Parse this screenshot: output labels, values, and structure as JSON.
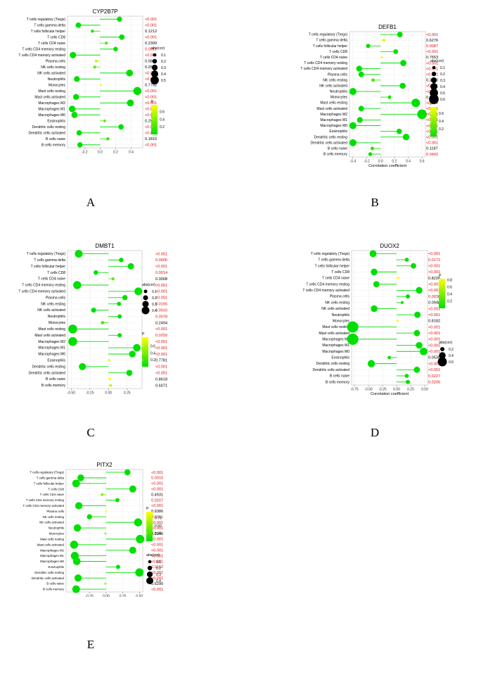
{
  "figure": {
    "letters": [
      "A",
      "B",
      "C",
      "D",
      "E"
    ]
  },
  "colors": {
    "high_p": "#ffff00",
    "low_p": "#00e000",
    "sig": "#e01010",
    "nonsig": "#000000"
  },
  "chart_data": [
    {
      "type": "scatter",
      "title": "CYP2B7P",
      "xlabel": "Correlation coefficient",
      "xticks": [
        -0.2,
        0.0,
        0.2,
        0.4
      ],
      "xlim": [
        -0.42,
        0.55
      ],
      "cells": [
        "T cells regulatory (Tregs)",
        "T cells gamma delta",
        "T cells follicular helper",
        "T cells CD8",
        "T cells CD4 naive",
        "T cells CD4 memory resting",
        "T cells CD4 memory activated",
        "Plasma cells",
        "NK cells resting",
        "NK cells activated",
        "Neutrophils",
        "Monocytes",
        "Mast cells resting",
        "Mast cells activated",
        "Macrophages M2",
        "Macrophages M1",
        "Macrophages M0",
        "Eosinophils",
        "Dendritic cells resting",
        "Dendritic cells activated",
        "B cells naive",
        "B cells memory"
      ],
      "cor": [
        0.25,
        -0.28,
        -0.1,
        0.28,
        0.08,
        0.2,
        -0.35,
        -0.05,
        -0.07,
        0.38,
        -0.3,
        0.01,
        0.48,
        -0.31,
        0.39,
        -0.36,
        -0.33,
        0.06,
        0.27,
        -0.27,
        0.1,
        -0.26
      ],
      "p_values": [
        "<0.001",
        "<0.001",
        "0.1212",
        "<0.001",
        "0.2399",
        "0.0011",
        "<0.001",
        "0.5811",
        "0.2572",
        "<0.001",
        "<0.001",
        "0.7792",
        "<0.001",
        "<0.001",
        "<0.001",
        "<0.001",
        "<0.001",
        "0.2977",
        "<0.001",
        "<0.001",
        "0.1810",
        "<0.001"
      ],
      "p": [
        0.0,
        0.0,
        0.1212,
        0.0,
        0.2399,
        0.0011,
        0.0,
        0.5811,
        0.2572,
        0.0,
        0.0,
        0.7792,
        0.0,
        0.0,
        0.0,
        0.0,
        0.0,
        0.2977,
        0.0,
        0.0,
        0.181,
        0.0
      ],
      "size_legend": {
        "title": "abs(cor)",
        "labels": [
          "0.1",
          "0.2",
          "0.3",
          "0.4",
          "0.5"
        ],
        "values": [
          0.1,
          0.2,
          0.3,
          0.4,
          0.5
        ]
      },
      "color_legend": {
        "title": "p",
        "labels": [
          "0.6",
          "0.4",
          "0.2"
        ],
        "values": [
          0.6,
          0.4,
          0.2
        ],
        "range": [
          0,
          0.78
        ]
      },
      "legend_order": "size-first"
    },
    {
      "type": "scatter",
      "title": "DEFB1",
      "xlabel": "Correlation coefficient",
      "xticks": [
        -0.4,
        -0.2,
        0.0,
        0.2,
        0.4,
        0.6
      ],
      "xlim": [
        -0.45,
        0.65
      ],
      "cells": [
        "T cells regulatory (Tregs)",
        "T cells gamma delta",
        "T cells follicular helper",
        "T cells CD8",
        "T cells CD4 naive",
        "T cells CD4 memory resting",
        "T cells CD4 memory activated",
        "Plasma cells",
        "NK cells resting",
        "NK cells activated",
        "Neutrophils",
        "Monocytes",
        "Mast cells resting",
        "Mast cells activated",
        "Macrophages M2",
        "Macrophages M1",
        "Macrophages M0",
        "Eosinophils",
        "Dendritic cells resting",
        "Dendritic cells activated",
        "B cells naive",
        "B cells memory"
      ],
      "cor": [
        0.28,
        0.05,
        -0.18,
        0.22,
        0.02,
        0.33,
        -0.31,
        -0.28,
        -0.11,
        0.32,
        -0.4,
        0.13,
        0.51,
        -0.28,
        0.6,
        -0.3,
        -0.4,
        0.27,
        0.37,
        -0.4,
        -0.12,
        -0.15
      ],
      "p_values": [
        "<0.001",
        "0.6276",
        "0.0087",
        "<0.001",
        "0.7653",
        "<0.001",
        "<0.001",
        "<0.001",
        "0.2090",
        "<0.001",
        "<0.001",
        "0.0870",
        "<0.001",
        "<0.001",
        "<0.001",
        "<0.001",
        "<0.001",
        "<0.001",
        "<0.001",
        "<0.001",
        "0.1187",
        "0.0492"
      ],
      "p": [
        0.0,
        0.6276,
        0.0087,
        0.0,
        0.7653,
        0.0,
        0.0,
        0.0,
        0.209,
        0.0,
        0.0,
        0.087,
        0.0,
        0.0,
        0.0,
        0.0,
        0.0,
        0.0,
        0.0,
        0.0,
        0.1187,
        0.0492
      ],
      "size_legend": {
        "title": "abs(cor)",
        "labels": [
          "0.1",
          "0.2",
          "0.3",
          "0.4",
          "0.5",
          "0.6"
        ],
        "values": [
          0.1,
          0.2,
          0.3,
          0.4,
          0.5,
          0.6
        ]
      },
      "color_legend": {
        "title": "p",
        "labels": [
          "0.6",
          "0.4",
          "0.2"
        ],
        "values": [
          0.6,
          0.4,
          0.2
        ],
        "range": [
          0,
          0.77
        ]
      },
      "legend_order": "size-first"
    },
    {
      "type": "scatter",
      "title": "DMBT1",
      "xlabel": "Correlation coefficient",
      "xticks": [
        -0.5,
        -0.25,
        0.0,
        0.25
      ],
      "xlim": [
        -0.55,
        0.45
      ],
      "cells": [
        "T cells regulatory (Tregs)",
        "T cells gamma delta",
        "T cells follicular helper",
        "T cells CD8",
        "T cells CD4 naive",
        "T cells CD4 memory resting",
        "T cells CD4 memory activated",
        "Plasma cells",
        "NK cells resting",
        "NK cells activated",
        "Neutrophils",
        "Monocytes",
        "Mast cells resting",
        "Mast cells activated",
        "Macrophages M2",
        "Macrophages M1",
        "Macrophages M0",
        "Eosinophils",
        "Dendritic cells resting",
        "Dendritic cells activated",
        "B cells naive",
        "B cells memory"
      ],
      "cor": [
        -0.4,
        0.17,
        0.3,
        -0.17,
        0.06,
        -0.42,
        0.4,
        0.22,
        0.14,
        -0.2,
        0.15,
        -0.08,
        -0.48,
        0.15,
        -0.48,
        0.38,
        0.32,
        0.01,
        -0.35,
        0.28,
        0.02,
        0.03
      ],
      "p_values": [
        "<0.001",
        "0.0006",
        "<0.001",
        "0.0014",
        "0.3008",
        "<0.001",
        "<0.001",
        "<0.001",
        "0.0165",
        "0.0016",
        "0.0078",
        "0.2494",
        "<0.001",
        "0.0250",
        "<0.001",
        "<0.001",
        "<0.001",
        "0.7781",
        "<0.001",
        "<0.001",
        "0.8618",
        "0.6071"
      ],
      "p": [
        0.0,
        0.0006,
        0.0,
        0.0014,
        0.3008,
        0.0,
        0.0,
        0.0,
        0.0165,
        0.0016,
        0.0078,
        0.2494,
        0.0,
        0.025,
        0.0,
        0.0,
        0.0,
        0.7781,
        0.0,
        0.0,
        0.8618,
        0.6071
      ],
      "size_legend": {
        "title": "abs(cor)",
        "labels": [
          "0.1",
          "0.2",
          "0.3",
          "0.4"
        ],
        "values": [
          0.1,
          0.2,
          0.3,
          0.4
        ]
      },
      "color_legend": {
        "title": "p",
        "labels": [
          "0.6",
          "0.4",
          "0.2"
        ],
        "values": [
          0.6,
          0.4,
          0.2
        ],
        "range": [
          0,
          0.86
        ]
      },
      "legend_order": "size-first"
    },
    {
      "type": "scatter",
      "title": "DUOX2",
      "xlabel": "Correlation coefficient",
      "xticks": [
        -0.75,
        -0.5,
        -0.25,
        0.0,
        0.25,
        0.5
      ],
      "xlim": [
        -0.8,
        0.55
      ],
      "cells": [
        "T cells regulatory (Tregs)",
        "T cells gamma delta",
        "T cells follicular helper",
        "T cells CD8",
        "T cells CD4 naive",
        "T cells CD4 memory resting",
        "T cells CD4 memory activated",
        "Plasma cells",
        "NK cells resting",
        "NK cells activated",
        "Neutrophils",
        "Monocytes",
        "Mast cells resting",
        "Mast cells activated",
        "Macrophages M2",
        "Macrophages M1",
        "Macrophages M0",
        "Eosinophils",
        "Dendritic cells resting",
        "Dendritic cells activated",
        "B cells naive",
        "B cells memory"
      ],
      "cor": [
        -0.42,
        0.18,
        0.3,
        -0.4,
        0.03,
        -0.36,
        0.4,
        0.2,
        0.1,
        -0.4,
        0.37,
        0.02,
        -0.78,
        0.36,
        -0.78,
        0.4,
        0.48,
        -0.13,
        -0.45,
        0.36,
        0.18,
        0.2
      ],
      "p_values": [
        "<0.001",
        "0.0172",
        "<0.001",
        "<0.001",
        "0.8226",
        "<0.001",
        "<0.001",
        "0.0036",
        "0.0948",
        "<0.001",
        "<0.001",
        "0.8182",
        "<0.001",
        "<0.001",
        "<0.001",
        "<0.001",
        "<0.001",
        "0.0538",
        "<0.001",
        "<0.001",
        "0.0227",
        "0.0206"
      ],
      "p": [
        0.0,
        0.0172,
        0.0,
        0.0,
        0.8226,
        0.0,
        0.0,
        0.0036,
        0.0948,
        0.0,
        0.0,
        0.8182,
        0.0,
        0.0,
        0.0,
        0.0,
        0.0,
        0.0538,
        0.0,
        0.0,
        0.0227,
        0.0206
      ],
      "size_legend": {
        "title": "abs(cor)",
        "labels": [
          "0.2",
          "0.4",
          "0.6"
        ],
        "values": [
          0.2,
          0.4,
          0.6
        ]
      },
      "color_legend": {
        "title": "p",
        "labels": [
          "0.8",
          "0.6",
          "0.4",
          "0.2"
        ],
        "values": [
          0.8,
          0.6,
          0.4,
          0.2
        ],
        "range": [
          0,
          0.83
        ]
      },
      "legend_order": "color-first"
    },
    {
      "type": "scatter",
      "title": "PITX2",
      "xlabel": "Correlation coefficient",
      "xticks": [
        -0.25,
        0.0,
        0.25,
        0.5
      ],
      "xlim": [
        -0.6,
        0.55
      ],
      "cells": [
        "T cells regulatory (Tregs)",
        "T cells gamma delta",
        "T cells follicular helper",
        "T cells CD8",
        "T cells CD4 naive",
        "T cells CD4 memory resting",
        "T cells CD4 memory activated",
        "Plasma cells",
        "NK cells resting",
        "NK cells activated",
        "Neutrophils",
        "Monocytes",
        "Mast cells resting",
        "Mast cells activated",
        "Macrophages M2",
        "Macrophages M1",
        "Macrophages M0",
        "Eosinophils",
        "Dendritic cells resting",
        "Dendritic cells activated",
        "B cells naive",
        "B cells memory"
      ],
      "cor": [
        0.32,
        -0.38,
        -0.45,
        0.4,
        -0.06,
        0.17,
        -0.41,
        0.0,
        -0.25,
        0.48,
        -0.43,
        -0.01,
        0.51,
        -0.48,
        0.4,
        -0.47,
        -0.44,
        0.18,
        0.5,
        -0.42,
        -0.01,
        -0.45
      ],
      "p_values": [
        "<0.001",
        "0.0010",
        "<0.001",
        "<0.001",
        "0.4931",
        "0.0207",
        "<0.001",
        "0.9386",
        "0.0211",
        "<0.001",
        "<0.001",
        "0.5940",
        "<0.001",
        "<0.001",
        "<0.001",
        "<0.001",
        "<0.001",
        "0.0162",
        "<0.001",
        "<0.001",
        "0.6290",
        "<0.001"
      ],
      "p": [
        0.0,
        0.001,
        0.0,
        0.0,
        0.4931,
        0.0207,
        0.0,
        0.9386,
        0.0211,
        0.0,
        0.0,
        0.594,
        0.0,
        0.0,
        0.0,
        0.0,
        0.0,
        0.0162,
        0.0,
        0.0,
        0.629,
        0.0
      ],
      "size_legend": {
        "title": "abs(cor)",
        "labels": [
          "0.1",
          "0.2",
          "0.3",
          "0.4"
        ],
        "values": [
          0.1,
          0.2,
          0.3,
          0.4
        ]
      },
      "color_legend": {
        "title": "p",
        "labels": [
          "0.75",
          "0.50",
          "0.25"
        ],
        "values": [
          0.75,
          0.5,
          0.25
        ],
        "range": [
          0,
          0.94
        ]
      },
      "legend_order": "color-first"
    }
  ]
}
